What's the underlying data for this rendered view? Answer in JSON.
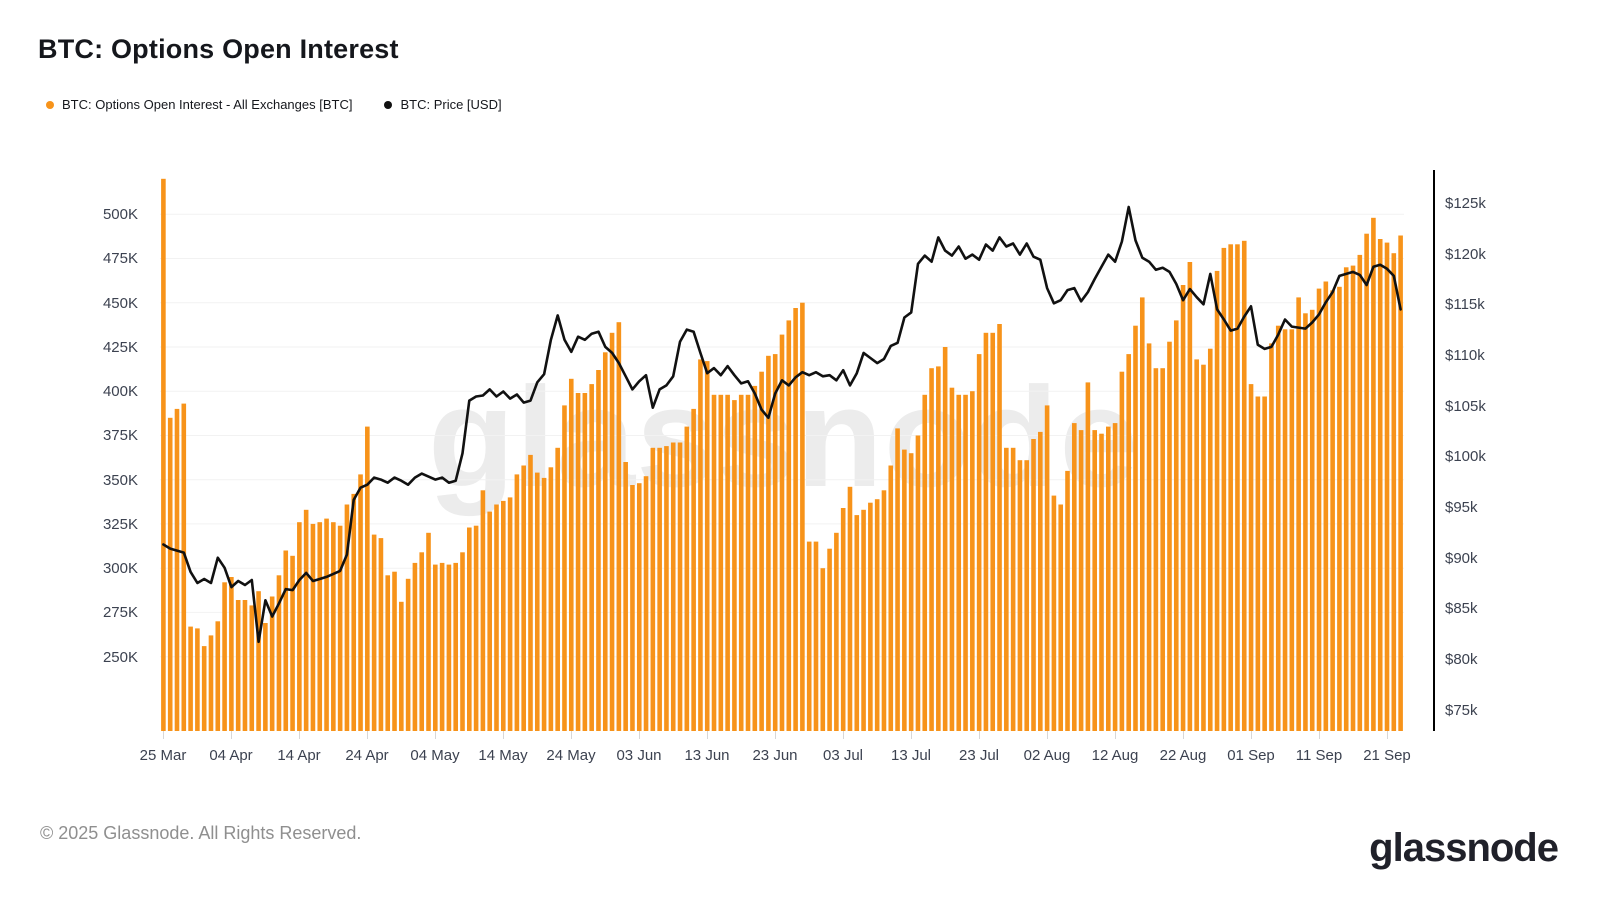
{
  "header": {
    "title": "BTC: Options Open Interest"
  },
  "legend": [
    {
      "label": "BTC: Options Open Interest - All Exchanges [BTC]",
      "color": "#F7931A"
    },
    {
      "label": "BTC: Price [USD]",
      "color": "#111111"
    }
  ],
  "watermark": "glassnode",
  "footer": {
    "copyright": "© 2025 Glassnode. All Rights Reserved.",
    "brand": "glassnode"
  },
  "chart_data": {
    "type": "bar",
    "title": "BTC: Options Open Interest",
    "grid": "horizontal",
    "legend_position": "top-left",
    "x_start_label": "25 Mar",
    "x_end_label": "21 Sep",
    "x_tick_labels": [
      "25 Mar",
      "04 Apr",
      "14 Apr",
      "24 Apr",
      "04 May",
      "14 May",
      "24 May",
      "03 Jun",
      "13 Jun",
      "23 Jun",
      "03 Jul",
      "13 Jul",
      "23 Jul",
      "02 Aug",
      "12 Aug",
      "22 Aug",
      "01 Sep",
      "11 Sep",
      "21 Sep"
    ],
    "x_tick_day_indices": [
      0,
      10,
      20,
      30,
      40,
      50,
      60,
      70,
      80,
      90,
      100,
      110,
      120,
      130,
      140,
      150,
      160,
      170,
      180
    ],
    "left_axis": {
      "unit": "BTC contracts (thousands)",
      "ticks": [
        "250K",
        "275K",
        "300K",
        "325K",
        "350K",
        "375K",
        "400K",
        "425K",
        "450K",
        "475K",
        "500K"
      ],
      "tick_values": [
        250,
        275,
        300,
        325,
        350,
        375,
        400,
        425,
        450,
        475,
        500
      ],
      "range": [
        208,
        525
      ]
    },
    "right_axis": {
      "unit": "USD (thousands)",
      "ticks": [
        "$75k",
        "$80k",
        "$85k",
        "$90k",
        "$95k",
        "$100k",
        "$105k",
        "$110k",
        "$115k",
        "$120k",
        "$125k"
      ],
      "tick_values": [
        75,
        80,
        85,
        90,
        95,
        100,
        105,
        110,
        115,
        120,
        125
      ],
      "range": [
        72.9,
        128.25
      ]
    },
    "series": [
      {
        "name": "BTC: Options Open Interest - All Exchanges [BTC]",
        "type": "bar",
        "axis": "left",
        "color": "#F7931A",
        "values_k_btc": [
          520,
          385,
          390,
          393,
          267,
          266,
          256,
          262,
          270,
          292,
          295,
          282,
          282,
          279,
          287,
          269,
          284,
          296,
          310,
          307,
          326,
          333,
          325,
          326,
          328,
          326,
          324,
          336,
          342,
          353,
          380,
          319,
          317,
          296,
          298,
          281,
          294,
          303,
          309,
          320,
          302,
          303,
          302,
          303,
          309,
          323,
          324,
          344,
          332,
          336,
          338,
          340,
          353,
          358,
          364,
          354,
          351,
          357,
          368,
          392,
          407,
          399,
          399,
          404,
          412,
          422,
          433,
          439,
          360,
          347,
          348,
          352,
          368,
          368,
          369,
          371,
          371,
          380,
          390,
          418,
          417,
          398,
          398,
          398,
          395,
          398,
          398,
          403,
          411,
          420,
          421,
          432,
          440,
          447,
          450,
          315,
          315,
          300,
          311,
          320,
          334,
          346,
          330,
          333,
          337,
          339,
          344,
          358,
          379,
          367,
          365,
          375,
          398,
          413,
          414,
          425,
          402,
          398,
          398,
          400,
          421,
          433,
          433,
          438,
          368,
          368,
          361,
          361,
          373,
          377,
          392,
          341,
          336,
          355,
          382,
          378,
          405,
          378,
          376,
          380,
          382,
          411,
          421,
          437,
          453,
          427,
          413,
          413,
          428,
          440,
          460,
          473,
          418,
          415,
          424,
          468,
          481,
          483,
          483,
          485,
          404,
          397,
          397,
          427,
          437,
          435,
          435,
          453,
          444,
          446,
          458,
          462,
          457,
          459,
          470,
          471,
          477,
          489,
          498,
          486,
          484,
          478,
          488
        ]
      },
      {
        "name": "BTC: Price [USD]",
        "type": "line",
        "axis": "right",
        "color": "#111111",
        "values_k_usd": [
          91.3,
          90.9,
          90.7,
          90.5,
          88.6,
          87.5,
          87.9,
          87.5,
          90.0,
          89.0,
          87.1,
          87.7,
          87.3,
          87.8,
          81.7,
          85.8,
          84.2,
          85.5,
          86.9,
          86.8,
          87.8,
          88.5,
          87.7,
          87.9,
          88.1,
          88.4,
          88.7,
          90.3,
          95.7,
          96.9,
          97.2,
          97.9,
          97.7,
          97.4,
          97.9,
          97.6,
          97.2,
          97.9,
          98.3,
          98.0,
          97.7,
          97.9,
          97.4,
          97.6,
          100.3,
          105.5,
          105.9,
          106.0,
          106.6,
          105.9,
          106.4,
          105.7,
          106.1,
          105.3,
          105.5,
          107.3,
          108.1,
          111.5,
          113.9,
          111.5,
          110.3,
          111.8,
          111.5,
          112.1,
          112.3,
          110.8,
          110.2,
          109.2,
          107.9,
          106.6,
          107.4,
          108.0,
          104.8,
          106.6,
          107.0,
          107.9,
          111.3,
          112.5,
          112.3,
          110.2,
          108.2,
          108.7,
          108.0,
          108.9,
          108.0,
          107.2,
          107.4,
          106.2,
          104.6,
          103.8,
          106.2,
          107.5,
          107.0,
          107.8,
          108.3,
          108.0,
          108.3,
          107.9,
          108.0,
          107.5,
          108.5,
          107.0,
          108.2,
          110.2,
          109.7,
          109.2,
          109.6,
          110.9,
          111.2,
          113.7,
          114.2,
          119.0,
          119.8,
          119.2,
          121.6,
          120.3,
          119.8,
          120.7,
          119.5,
          119.9,
          119.4,
          120.9,
          120.3,
          121.6,
          120.7,
          121.0,
          119.9,
          121.0,
          119.7,
          119.4,
          116.6,
          115.1,
          115.4,
          116.4,
          116.6,
          115.3,
          116.2,
          117.5,
          118.7,
          119.9,
          119.2,
          121.2,
          124.6,
          121.3,
          119.6,
          119.2,
          118.4,
          118.6,
          118.2,
          117.0,
          115.4,
          116.5,
          115.7,
          115.0,
          118.0,
          114.5,
          113.5,
          112.4,
          112.6,
          113.8,
          114.8,
          111.0,
          110.6,
          110.8,
          112.0,
          113.5,
          112.8,
          112.7,
          112.6,
          113.2,
          114.0,
          115.2,
          116.2,
          117.8,
          118.0,
          118.2,
          117.9,
          116.9,
          118.7,
          118.9,
          118.5,
          117.8,
          114.5
        ]
      }
    ]
  }
}
